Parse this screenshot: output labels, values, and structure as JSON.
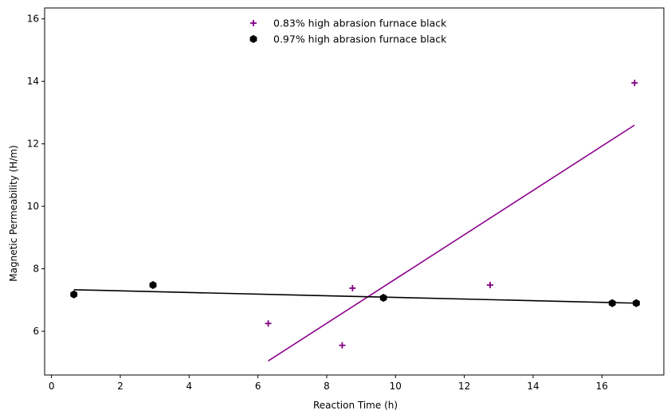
{
  "chart_data": {
    "type": "scatter",
    "title": "",
    "xlabel": "Reaction Time (h)",
    "ylabel": "Magnetic Permeability (H/m)",
    "xlim": [
      -0.2,
      17.8
    ],
    "ylim": [
      4.6,
      16.35
    ],
    "xticks": [
      0,
      2,
      4,
      6,
      8,
      10,
      12,
      14,
      16
    ],
    "yticks": [
      6,
      8,
      10,
      12,
      14,
      16
    ],
    "grid": false,
    "legend_position": "top-center",
    "series": [
      {
        "name": "0.83% high abrasion furnace black",
        "marker": "plus",
        "color": "#800080",
        "points": [
          {
            "x": 6.3,
            "y": 6.25
          },
          {
            "x": 8.45,
            "y": 5.55
          },
          {
            "x": 8.75,
            "y": 7.38
          },
          {
            "x": 12.75,
            "y": 7.48
          },
          {
            "x": 16.95,
            "y": 13.95
          }
        ],
        "fit_line": {
          "x": [
            6.3,
            16.95
          ],
          "y": [
            5.05,
            12.6
          ],
          "color": "#8B008B"
        }
      },
      {
        "name": "0.97% high abrasion furnace black",
        "marker": "hexagon",
        "color": "#000000",
        "points": [
          {
            "x": 0.65,
            "y": 7.18
          },
          {
            "x": 2.95,
            "y": 7.48
          },
          {
            "x": 9.65,
            "y": 7.07
          },
          {
            "x": 16.3,
            "y": 6.9
          },
          {
            "x": 17.0,
            "y": 6.9
          }
        ],
        "fit_line": {
          "x": [
            0.65,
            17.0
          ],
          "y": [
            7.33,
            6.9
          ],
          "color": "#000000"
        }
      }
    ]
  }
}
